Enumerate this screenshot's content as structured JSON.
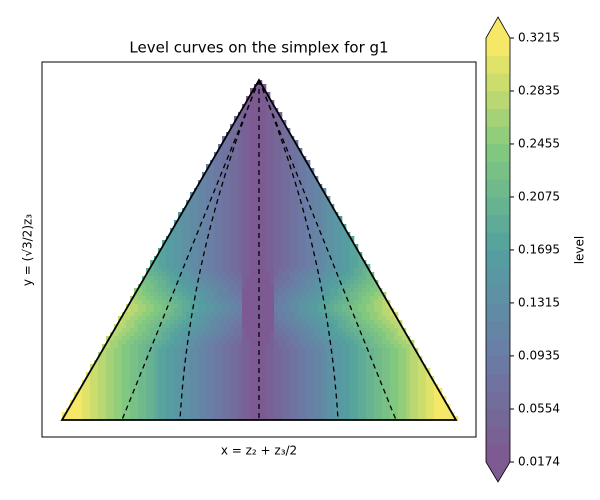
{
  "chart_data": {
    "type": "contour",
    "title": "Level curves on the simplex for g1",
    "xlabel": "x = z₂ + z₃/2",
    "ylabel": "y = (√3/2)z₃",
    "colorbar_label": "level",
    "zlim": [
      0.0174,
      0.3215
    ],
    "zticks": [
      0.0174,
      0.0554,
      0.0935,
      0.1315,
      0.1695,
      0.2075,
      0.2455,
      0.2835,
      0.3215
    ],
    "levels": 24,
    "colormap": "viridis"
  }
}
